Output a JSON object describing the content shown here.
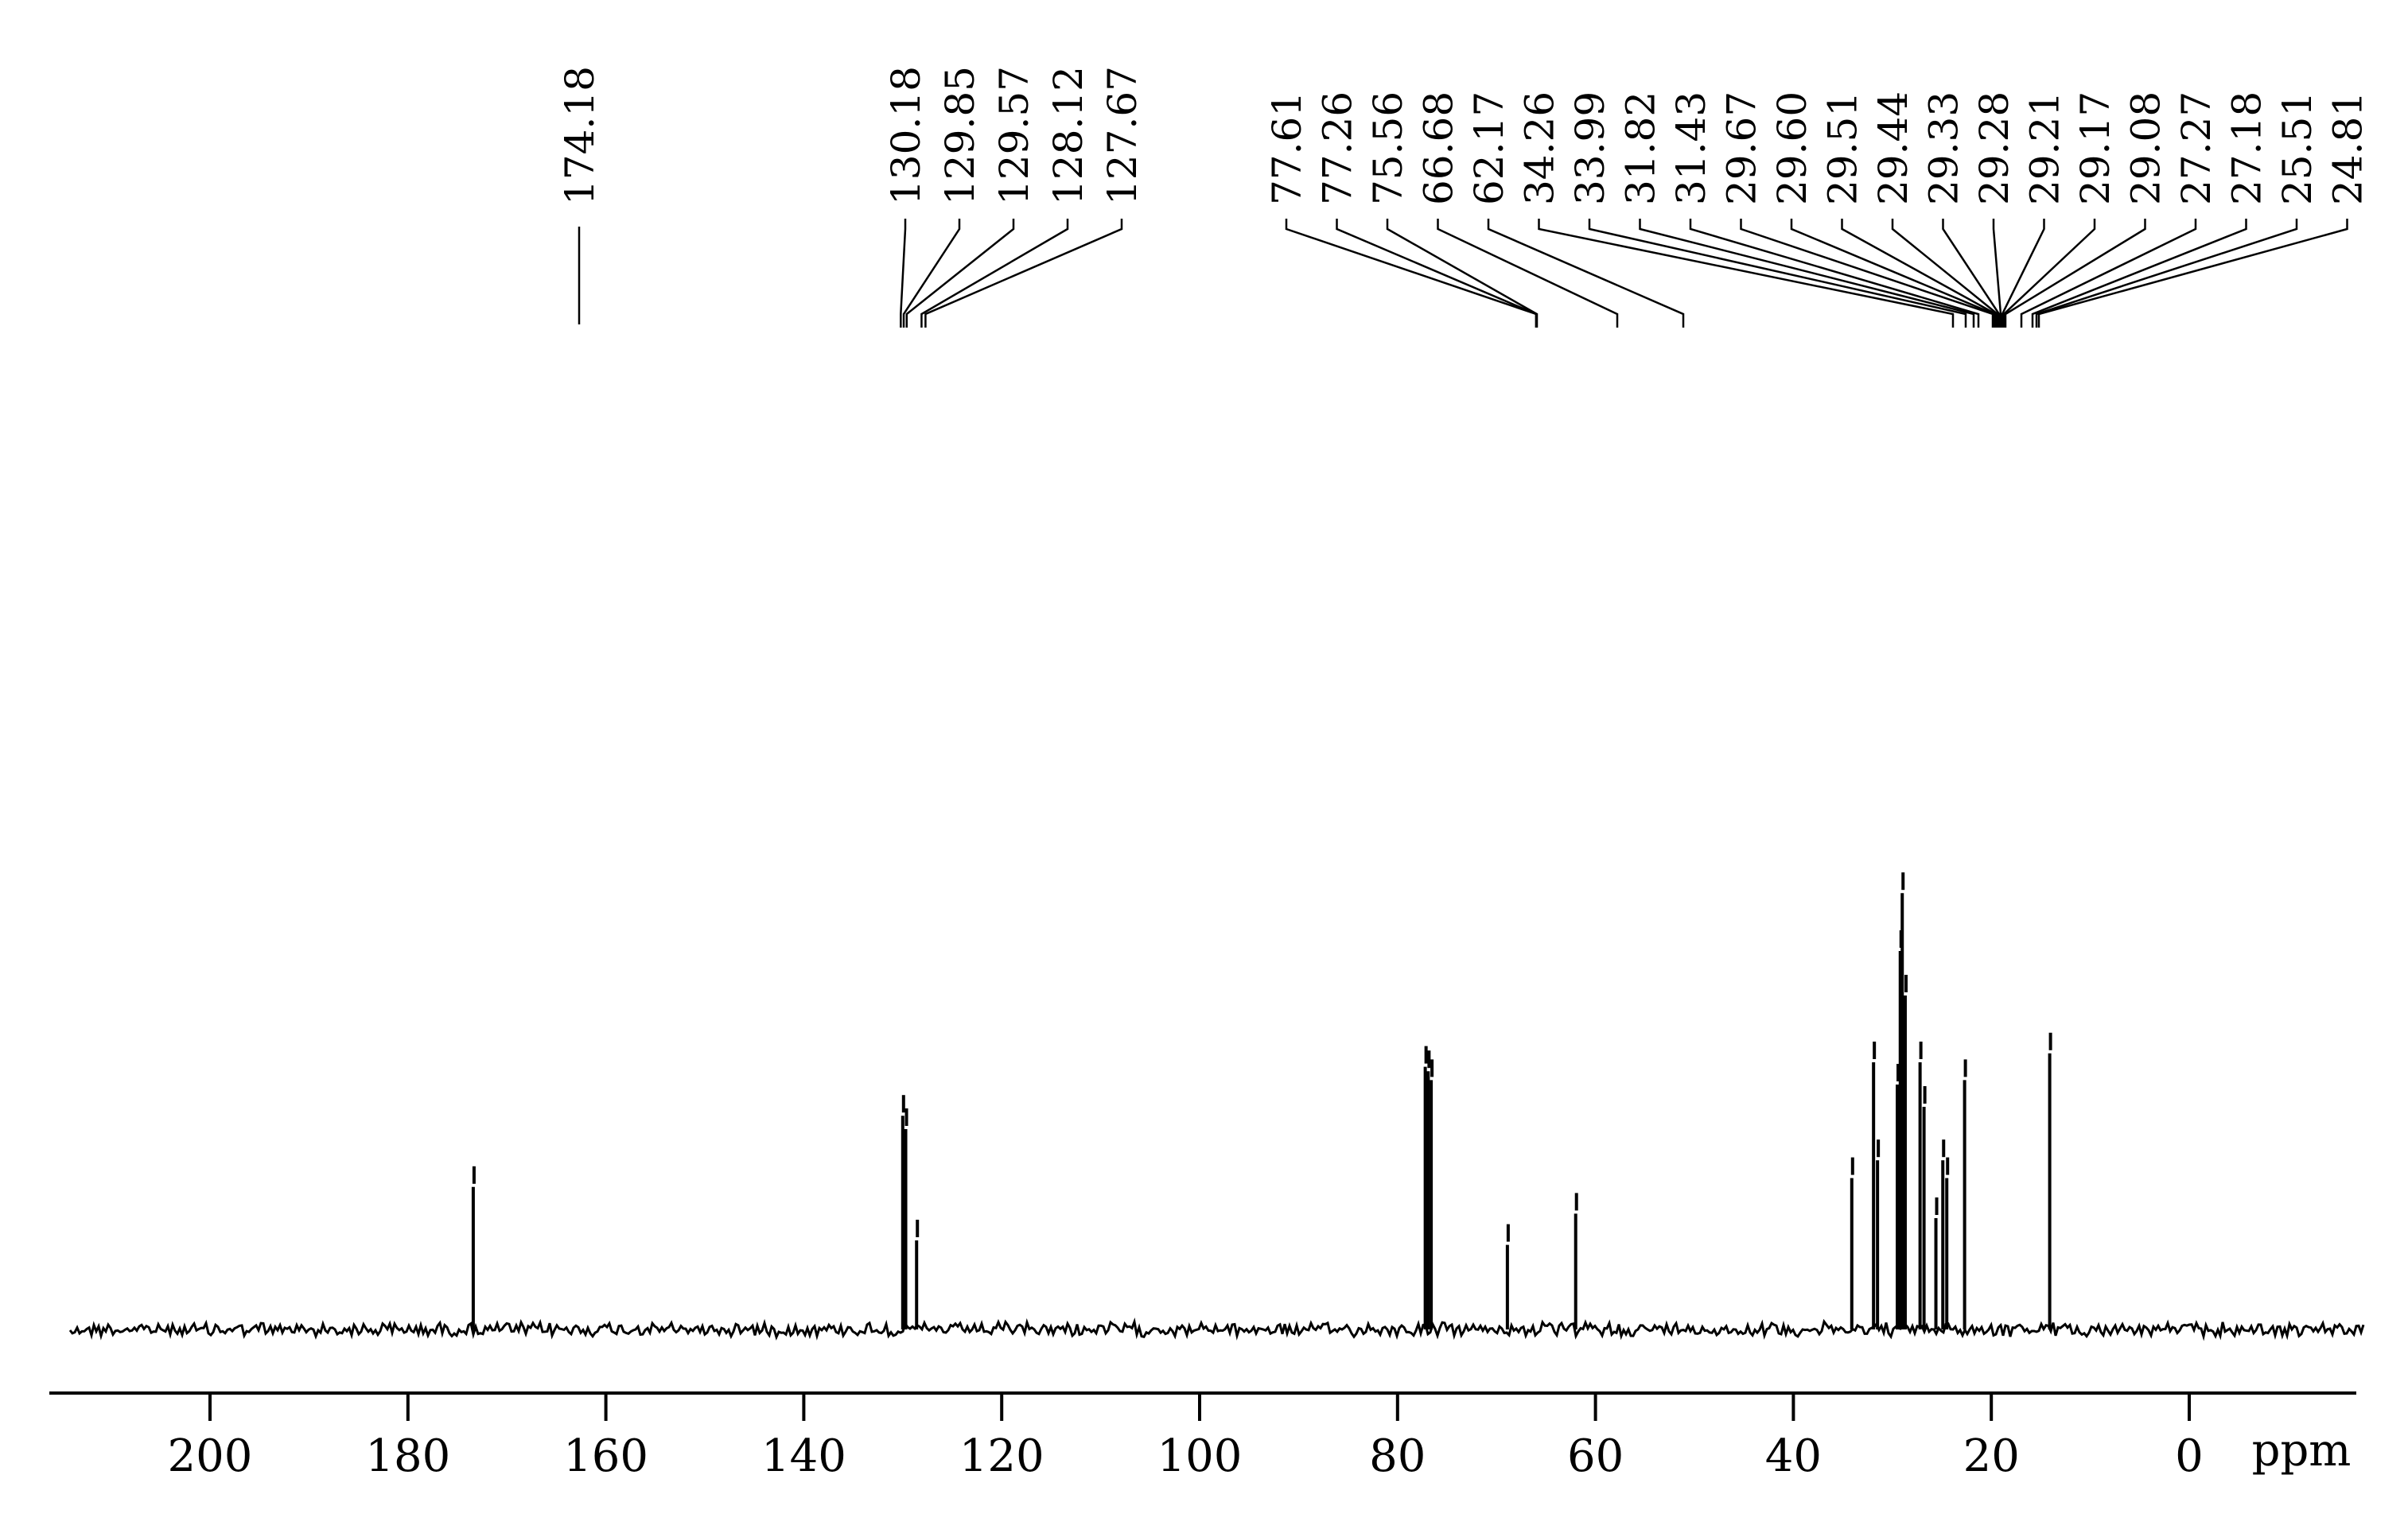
{
  "chart_data": {
    "type": "line",
    "title": "",
    "xlabel": "ppm",
    "ylabel": "",
    "x_reversed": true,
    "xlim": [
      220,
      -18
    ],
    "x_ticks": [
      200,
      180,
      160,
      140,
      120,
      100,
      80,
      60,
      40,
      20,
      0
    ],
    "x_tick_labels": [
      "200",
      "180",
      "160",
      "140",
      "120",
      "100",
      "80",
      "60",
      "40",
      "20",
      "0"
    ],
    "x_unit_label": "ppm",
    "grid": false,
    "legend": "none",
    "peak_labels": {
      "group_carbonyl": [
        "174.18"
      ],
      "group_olefinic": [
        "130.18",
        "129.85",
        "129.57",
        "128.12",
        "127.67"
      ],
      "group_aliphatic": [
        "77.61",
        "77.26",
        "75.56",
        "66.68",
        "62.17",
        "34.26",
        "33.99",
        "31.82",
        "31.43",
        "29.67",
        "29.60",
        "29.51",
        "29.44",
        "29.33",
        "29.28",
        "29.21",
        "29.17",
        "29.08",
        "27.27",
        "27.18",
        "25.51",
        "24.81"
      ]
    },
    "series": [
      {
        "peaks": [
          {
            "ppm": 173.4,
            "intensity": 0.32
          },
          {
            "ppm": 130.0,
            "intensity": 0.48
          },
          {
            "ppm": 129.7,
            "intensity": 0.45
          },
          {
            "ppm": 128.6,
            "intensity": 0.2
          },
          {
            "ppm": 77.2,
            "intensity": 0.59
          },
          {
            "ppm": 76.9,
            "intensity": 0.58
          },
          {
            "ppm": 76.6,
            "intensity": 0.56
          },
          {
            "ppm": 68.9,
            "intensity": 0.19
          },
          {
            "ppm": 62.0,
            "intensity": 0.26
          },
          {
            "ppm": 34.1,
            "intensity": 0.34
          },
          {
            "ppm": 31.9,
            "intensity": 0.6
          },
          {
            "ppm": 31.5,
            "intensity": 0.38
          },
          {
            "ppm": 29.5,
            "intensity": 0.55
          },
          {
            "ppm": 29.2,
            "intensity": 0.85
          },
          {
            "ppm": 29.0,
            "intensity": 0.98
          },
          {
            "ppm": 28.7,
            "intensity": 0.75
          },
          {
            "ppm": 27.2,
            "intensity": 0.6
          },
          {
            "ppm": 26.8,
            "intensity": 0.5
          },
          {
            "ppm": 25.6,
            "intensity": 0.25
          },
          {
            "ppm": 24.9,
            "intensity": 0.38
          },
          {
            "ppm": 24.5,
            "intensity": 0.34
          },
          {
            "ppm": 22.7,
            "intensity": 0.56
          },
          {
            "ppm": 14.1,
            "intensity": 0.62
          }
        ]
      }
    ]
  }
}
